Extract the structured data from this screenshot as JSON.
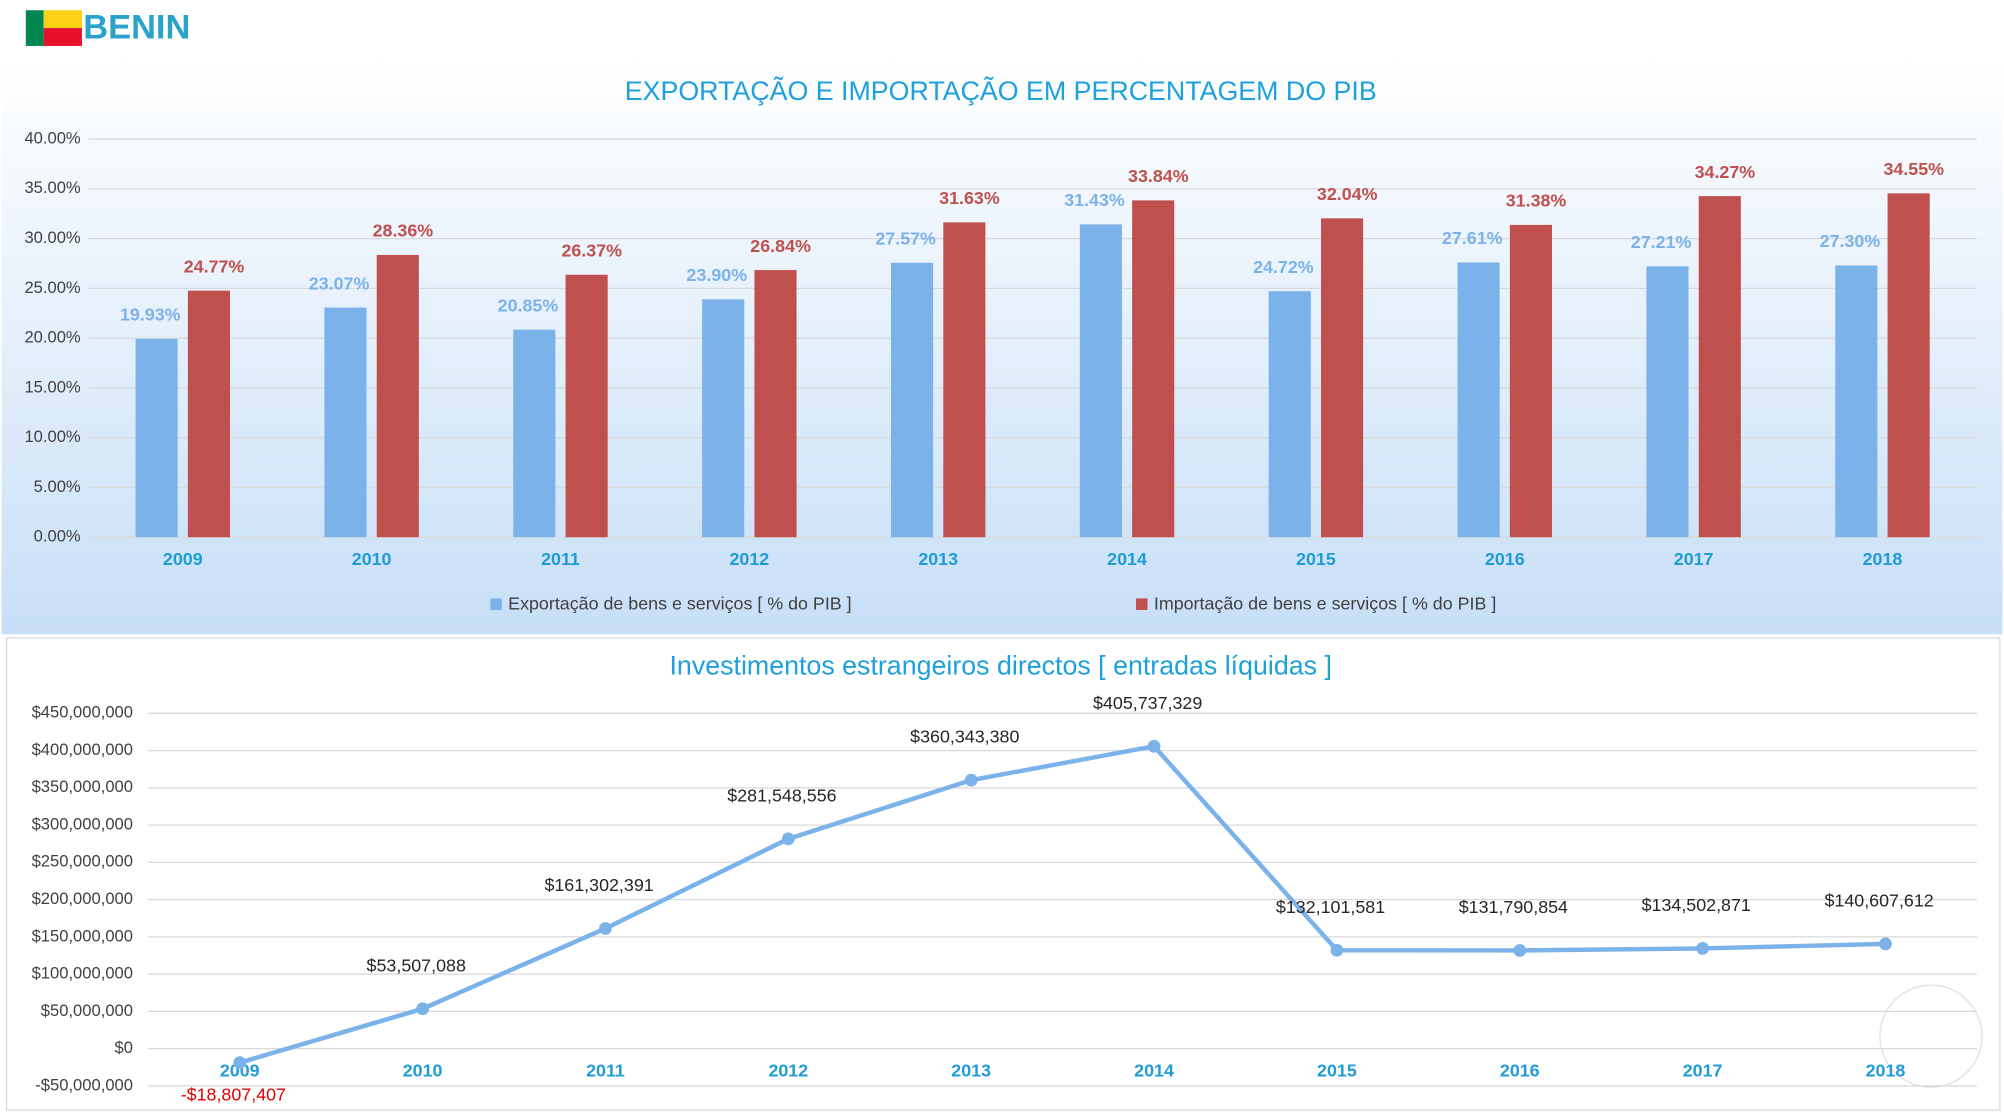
{
  "header": {
    "title": "BENIN"
  },
  "chart_data": [
    {
      "type": "bar",
      "title": "EXPORTAÇÃO E IMPORTAÇÃO EM PERCENTAGEM DO PIB",
      "categories": [
        "2009",
        "2010",
        "2011",
        "2012",
        "2013",
        "2014",
        "2015",
        "2016",
        "2017",
        "2018"
      ],
      "series": [
        {
          "name": "Exportação de bens e serviços [ % do PIB ]",
          "color": "#7cb2ea",
          "values": [
            19.93,
            23.07,
            20.85,
            23.9,
            27.57,
            31.43,
            24.72,
            27.61,
            27.21,
            27.3
          ],
          "value_labels": [
            "19.93%",
            "23.07%",
            "20.85%",
            "23.90%",
            "27.57%",
            "31.43%",
            "24.72%",
            "27.61%",
            "27.21%",
            "27.30%"
          ]
        },
        {
          "name": "Importação de bens e serviços [ % do PIB ]",
          "color": "#c0504d",
          "values": [
            24.77,
            28.36,
            26.37,
            26.84,
            31.63,
            33.84,
            32.04,
            31.38,
            34.27,
            34.55
          ],
          "value_labels": [
            "24.77%",
            "28.36%",
            "26.37%",
            "26.84%",
            "31.63%",
            "33.84%",
            "32.04%",
            "31.38%",
            "34.27%",
            "34.55%"
          ]
        }
      ],
      "ylim": [
        0,
        40
      ],
      "yticks": [
        {
          "value": 0,
          "label": "0.00%"
        },
        {
          "value": 5,
          "label": "5.00%"
        },
        {
          "value": 10,
          "label": "10.00%"
        },
        {
          "value": 15,
          "label": "15.00%"
        },
        {
          "value": 20,
          "label": "20.00%"
        },
        {
          "value": 25,
          "label": "25.00%"
        },
        {
          "value": 30,
          "label": "30.00%"
        },
        {
          "value": 35,
          "label": "35.00%"
        },
        {
          "value": 40,
          "label": "40.00%"
        }
      ],
      "grid": true,
      "legend": "bottom"
    },
    {
      "type": "line",
      "title": "Investimentos estrangeiros directos [ entradas líquidas ]",
      "categories": [
        "2009",
        "2010",
        "2011",
        "2012",
        "2013",
        "2014",
        "2015",
        "2016",
        "2017",
        "2018"
      ],
      "color": "#7cb2ea",
      "values": [
        -18807407,
        53507088,
        161302391,
        281548556,
        360343380,
        405737329,
        132101581,
        131790854,
        134502871,
        140607612
      ],
      "value_labels": [
        "-$18,807,407",
        "$53,507,088",
        "$161,302,391",
        "$281,548,556",
        "$360,343,380",
        "$405,737,329",
        "$132,101,581",
        "$131,790,854",
        "$134,502,871",
        "$140,607,612"
      ],
      "ylim": [
        -50000000,
        450000000
      ],
      "yticks": [
        {
          "value": -50000000,
          "label": "-$50,000,000"
        },
        {
          "value": 0,
          "label": "$0"
        },
        {
          "value": 50000000,
          "label": "$50,000,000"
        },
        {
          "value": 100000000,
          "label": "$100,000,000"
        },
        {
          "value": 150000000,
          "label": "$150,000,000"
        },
        {
          "value": 200000000,
          "label": "$200,000,000"
        },
        {
          "value": 250000000,
          "label": "$250,000,000"
        },
        {
          "value": 300000000,
          "label": "$300,000,000"
        },
        {
          "value": 350000000,
          "label": "$350,000,000"
        },
        {
          "value": 400000000,
          "label": "$400,000,000"
        },
        {
          "value": 450000000,
          "label": "$450,000,000"
        }
      ],
      "grid": true
    }
  ]
}
